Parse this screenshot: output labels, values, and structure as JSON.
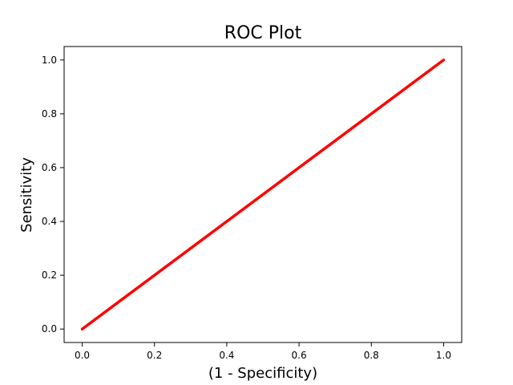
{
  "chart_data": {
    "type": "line",
    "title": "ROC Plot",
    "xlabel": "(1 - Specificity)",
    "ylabel": "Sensitivity",
    "xlim": [
      -0.05,
      1.05
    ],
    "ylim": [
      -0.05,
      1.05
    ],
    "xticks": [
      "0.0",
      "0.2",
      "0.4",
      "0.6",
      "0.8",
      "1.0"
    ],
    "yticks": [
      "0.0",
      "0.2",
      "0.4",
      "0.6",
      "0.8",
      "1.0"
    ],
    "grid": false,
    "legend": "none",
    "series": [
      {
        "color": "#ff0000",
        "x": [
          0.0,
          1.0
        ],
        "y": [
          0.0,
          1.0
        ]
      }
    ]
  }
}
